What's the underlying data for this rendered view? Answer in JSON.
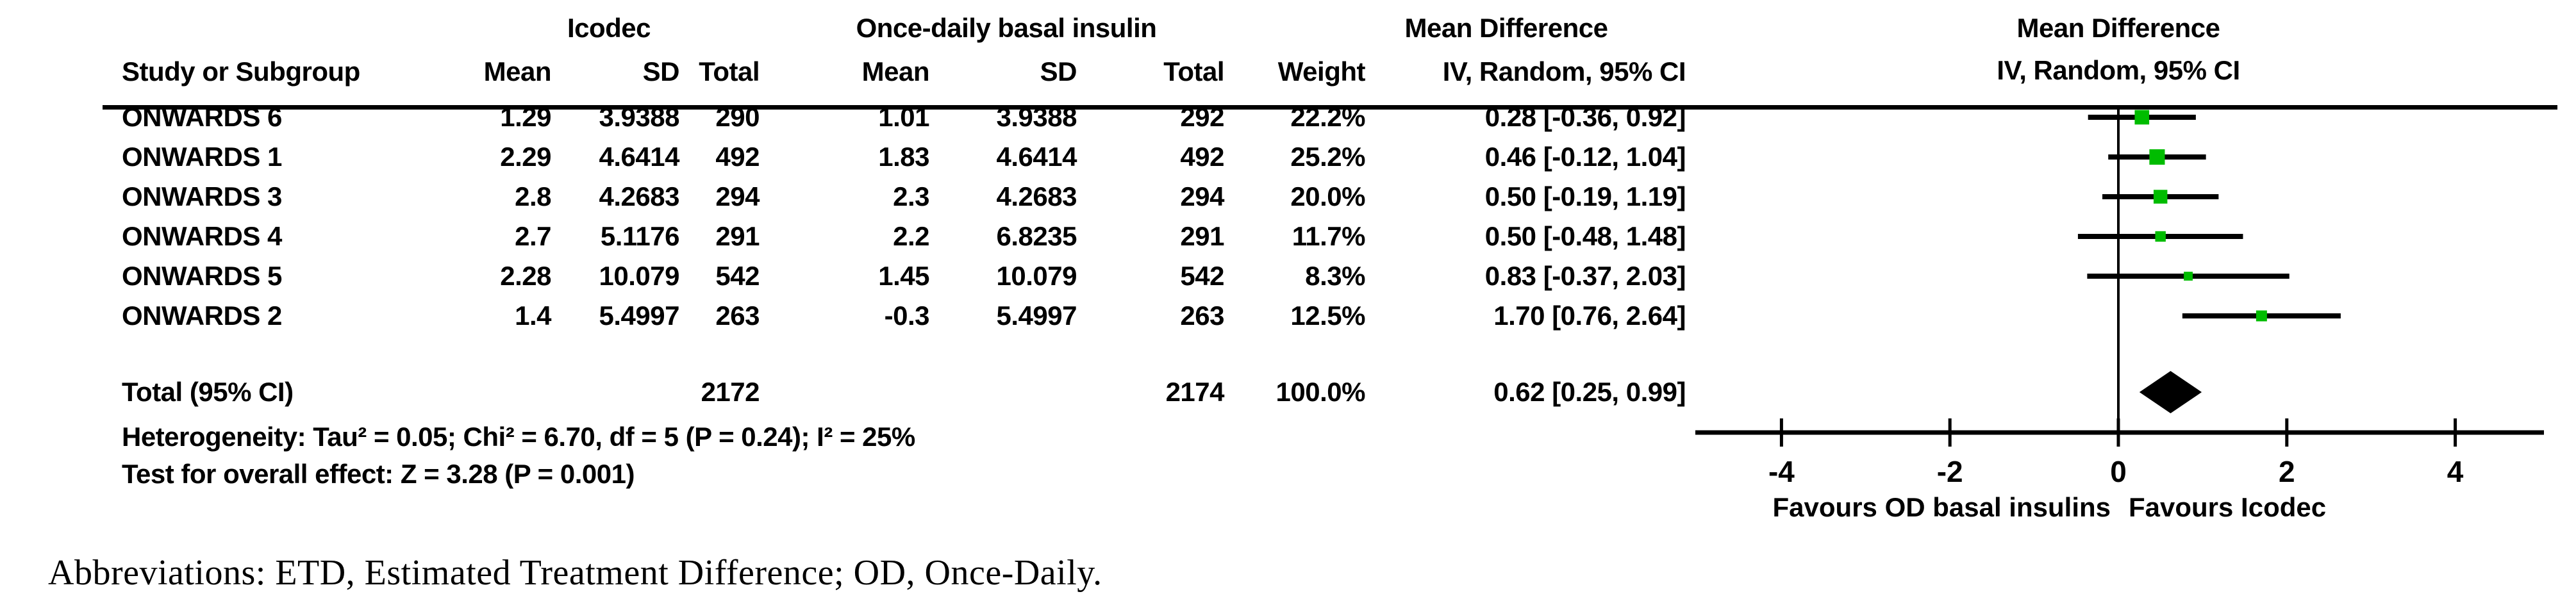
{
  "table": {
    "group_headers": {
      "icodec": "Icodec",
      "control": "Once-daily basal insulin",
      "md_left": "Mean Difference",
      "md_right": "Mean Difference"
    },
    "col_headers": {
      "study": "Study or Subgroup",
      "mean1": "Mean",
      "sd1": "SD",
      "total1": "Total",
      "mean2": "Mean",
      "sd2": "SD",
      "total2": "Total",
      "weight": "Weight",
      "ci": "IV, Random, 95% CI",
      "ci_right": "IV, Random, 95% CI"
    },
    "rows": [
      {
        "study": "ONWARDS 6",
        "mean1": "1.29",
        "sd1": "3.9388",
        "total1": "290",
        "mean2": "1.01",
        "sd2": "3.9388",
        "total2": "292",
        "weight": "22.2%",
        "ci": "0.28 [-0.36, 0.92]"
      },
      {
        "study": "ONWARDS 1",
        "mean1": "2.29",
        "sd1": "4.6414",
        "total1": "492",
        "mean2": "1.83",
        "sd2": "4.6414",
        "total2": "492",
        "weight": "25.2%",
        "ci": "0.46 [-0.12, 1.04]"
      },
      {
        "study": "ONWARDS 3",
        "mean1": "2.8",
        "sd1": "4.2683",
        "total1": "294",
        "mean2": "2.3",
        "sd2": "4.2683",
        "total2": "294",
        "weight": "20.0%",
        "ci": "0.50 [-0.19, 1.19]"
      },
      {
        "study": "ONWARDS 4",
        "mean1": "2.7",
        "sd1": "5.1176",
        "total1": "291",
        "mean2": "2.2",
        "sd2": "6.8235",
        "total2": "291",
        "weight": "11.7%",
        "ci": "0.50 [-0.48, 1.48]"
      },
      {
        "study": "ONWARDS 5",
        "mean1": "2.28",
        "sd1": "10.079",
        "total1": "542",
        "mean2": "1.45",
        "sd2": "10.079",
        "total2": "542",
        "weight": "8.3%",
        "ci": "0.83 [-0.37, 2.03]"
      },
      {
        "study": "ONWARDS 2",
        "mean1": "1.4",
        "sd1": "5.4997",
        "total1": "263",
        "mean2": "-0.3",
        "sd2": "5.4997",
        "total2": "263",
        "weight": "12.5%",
        "ci": "1.70 [0.76, 2.64]"
      }
    ],
    "total_row": {
      "label": "Total (95% CI)",
      "total1": "2172",
      "total2": "2174",
      "weight": "100.0%",
      "ci": "0.62 [0.25, 0.99]"
    },
    "heterogeneity": "Heterogeneity: Tau² = 0.05; Chi² = 6.70, df = 5 (P = 0.24); I² = 25%",
    "overall_effect": "Test for overall effect: Z = 3.28 (P = 0.001)"
  },
  "chart_data": {
    "type": "forest",
    "title": "Mean Difference",
    "subtitle": "IV, Random, 95% CI",
    "studies": [
      {
        "name": "ONWARDS 6",
        "md": 0.28,
        "ci_low": -0.36,
        "ci_high": 0.92,
        "weight_pct": 22.2
      },
      {
        "name": "ONWARDS 1",
        "md": 0.46,
        "ci_low": -0.12,
        "ci_high": 1.04,
        "weight_pct": 25.2
      },
      {
        "name": "ONWARDS 3",
        "md": 0.5,
        "ci_low": -0.19,
        "ci_high": 1.19,
        "weight_pct": 20.0
      },
      {
        "name": "ONWARDS 4",
        "md": 0.5,
        "ci_low": -0.48,
        "ci_high": 1.48,
        "weight_pct": 11.7
      },
      {
        "name": "ONWARDS 5",
        "md": 0.83,
        "ci_low": -0.37,
        "ci_high": 2.03,
        "weight_pct": 8.3
      },
      {
        "name": "ONWARDS 2",
        "md": 1.7,
        "ci_low": 0.76,
        "ci_high": 2.64,
        "weight_pct": 12.5
      }
    ],
    "total": {
      "md": 0.62,
      "ci_low": 0.25,
      "ci_high": 0.99
    },
    "axis": {
      "xlim": [
        -5,
        5
      ],
      "ticks": [
        -4,
        -2,
        0,
        2,
        4
      ],
      "tick_labels": [
        "-4",
        "-2",
        "0",
        "2",
        "4"
      ]
    },
    "favours_left": "Favours OD basal insulins",
    "favours_right": "Favours Icodec",
    "marker_color": "#00bc00",
    "line_color": "#000000"
  },
  "footer": {
    "abbreviations": "Abbreviations: ETD, Estimated Treatment Difference; OD, Once-Daily."
  }
}
